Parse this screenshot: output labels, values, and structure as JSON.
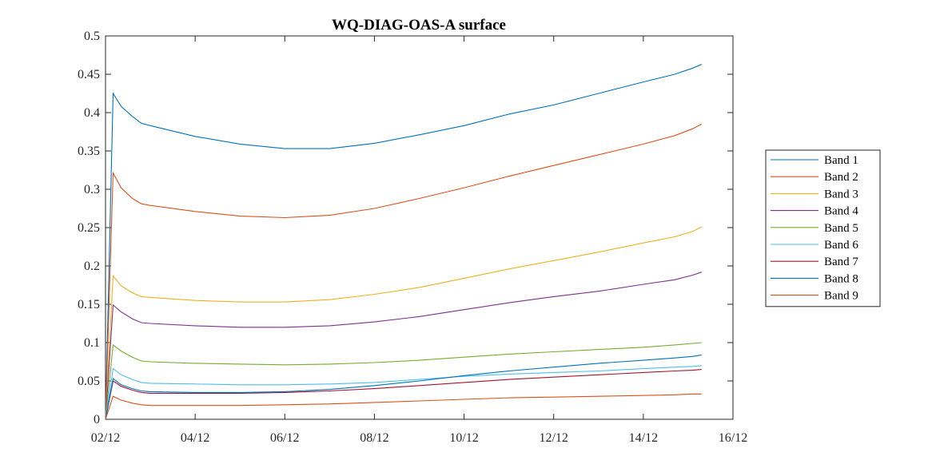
{
  "chart_data": {
    "type": "line",
    "title": "WQ-DIAG-OAS-A surface",
    "xlabel": "",
    "ylabel": "",
    "x_tick_labels": [
      "02/12",
      "04/12",
      "06/12",
      "08/12",
      "10/12",
      "12/12",
      "14/12",
      "16/12"
    ],
    "x_ticks": [
      0,
      2,
      4,
      6,
      8,
      10,
      12,
      14
    ],
    "xlim": [
      0,
      14
    ],
    "ylim": [
      0,
      0.5
    ],
    "y_ticks": [
      0,
      0.05,
      0.1,
      0.15,
      0.2,
      0.25,
      0.3,
      0.35,
      0.4,
      0.45,
      0.5
    ],
    "y_tick_labels": [
      "0",
      "0.05",
      "0.1",
      "0.15",
      "0.2",
      "0.25",
      "0.3",
      "0.35",
      "0.4",
      "0.45",
      "0.5"
    ],
    "grid": false,
    "legend_position": "right",
    "x_day_offsets": [
      0,
      0.17,
      0.35,
      0.6,
      0.8,
      1,
      2,
      3,
      4,
      5,
      6,
      7,
      8,
      9,
      10,
      11,
      12,
      12.7,
      13.1,
      13.3
    ],
    "series": [
      {
        "name": "Band 1",
        "color": "#0072BD",
        "values": [
          0,
          0.425,
          0.408,
          0.395,
          0.386,
          0.383,
          0.369,
          0.359,
          0.353,
          0.353,
          0.36,
          0.371,
          0.383,
          0.398,
          0.41,
          0.425,
          0.44,
          0.45,
          0.458,
          0.463
        ]
      },
      {
        "name": "Band 2",
        "color": "#D95319",
        "values": [
          0,
          0.321,
          0.302,
          0.288,
          0.281,
          0.279,
          0.271,
          0.265,
          0.263,
          0.266,
          0.275,
          0.288,
          0.302,
          0.317,
          0.331,
          0.345,
          0.359,
          0.37,
          0.379,
          0.385
        ]
      },
      {
        "name": "Band 3",
        "color": "#EDB120",
        "values": [
          0,
          0.187,
          0.174,
          0.165,
          0.16,
          0.159,
          0.155,
          0.153,
          0.153,
          0.156,
          0.163,
          0.172,
          0.184,
          0.196,
          0.207,
          0.218,
          0.23,
          0.238,
          0.245,
          0.251
        ]
      },
      {
        "name": "Band 4",
        "color": "#7E2F8E",
        "values": [
          0,
          0.149,
          0.14,
          0.131,
          0.126,
          0.125,
          0.122,
          0.12,
          0.12,
          0.122,
          0.127,
          0.134,
          0.143,
          0.152,
          0.16,
          0.167,
          0.176,
          0.182,
          0.188,
          0.192
        ]
      },
      {
        "name": "Band 5",
        "color": "#77AC30",
        "values": [
          0,
          0.097,
          0.089,
          0.081,
          0.076,
          0.075,
          0.073,
          0.072,
          0.071,
          0.072,
          0.074,
          0.077,
          0.081,
          0.085,
          0.088,
          0.091,
          0.094,
          0.097,
          0.099,
          0.1
        ]
      },
      {
        "name": "Band 6",
        "color": "#4DBEEE",
        "values": [
          0,
          0.066,
          0.058,
          0.052,
          0.048,
          0.047,
          0.046,
          0.045,
          0.045,
          0.046,
          0.048,
          0.052,
          0.056,
          0.059,
          0.061,
          0.063,
          0.066,
          0.068,
          0.069,
          0.07
        ]
      },
      {
        "name": "Band 7",
        "color": "#A2142F",
        "values": [
          0,
          0.05,
          0.043,
          0.038,
          0.035,
          0.034,
          0.034,
          0.034,
          0.035,
          0.037,
          0.04,
          0.044,
          0.048,
          0.052,
          0.055,
          0.058,
          0.061,
          0.063,
          0.064,
          0.065
        ]
      },
      {
        "name": "Band 8",
        "color": "#0072BD",
        "values": [
          0,
          0.053,
          0.045,
          0.04,
          0.037,
          0.036,
          0.035,
          0.035,
          0.036,
          0.039,
          0.044,
          0.05,
          0.057,
          0.063,
          0.068,
          0.073,
          0.077,
          0.08,
          0.082,
          0.084
        ]
      },
      {
        "name": "Band 9",
        "color": "#D95319",
        "values": [
          0,
          0.03,
          0.025,
          0.021,
          0.019,
          0.018,
          0.018,
          0.018,
          0.019,
          0.02,
          0.022,
          0.024,
          0.026,
          0.028,
          0.029,
          0.03,
          0.031,
          0.032,
          0.033,
          0.033
        ]
      }
    ]
  }
}
